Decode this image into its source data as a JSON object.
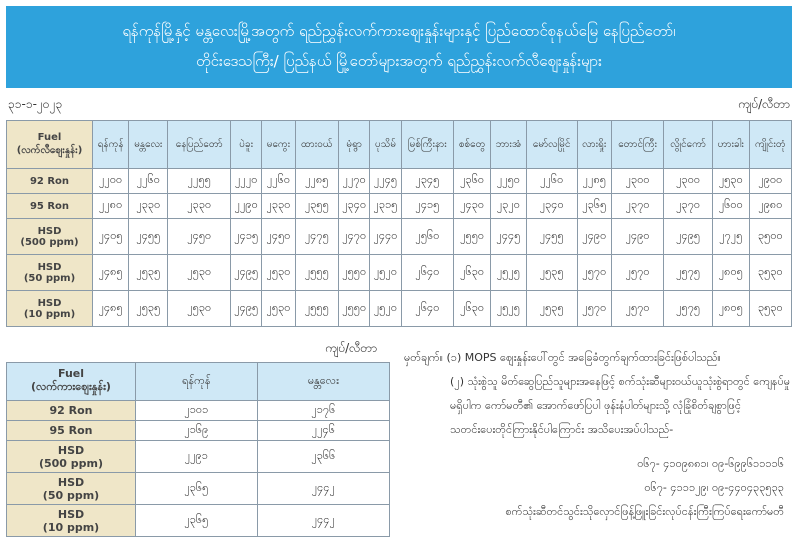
{
  "header": {
    "title_line1": "ရန်ကုန်မြို့နှင့် မန္တလေးမြို့အတွက် ရည်ညွှန်းလက်ကားဈေးနှုန်းများနှင့် ပြည်ထောင်စုနယ်မြေ နေပြည်တော်၊",
    "title_line2": "တိုင်းဒေသကြီး/ ပြည်နယ် မြို့တော်များအတွက် ရည်ညွှန်းလက်လီဈေးနှုန်းများ"
  },
  "date": "၃၁-၁-၂၀၂၃",
  "unit": "ကျပ်/လီတာ",
  "retail_table": {
    "fuel_header": "Fuel",
    "fuel_sub": "(လက်လီဈေးနှုန်း)",
    "cities": [
      "ရန်ကုန်",
      "မန္တလေး",
      "နေပြည်တော်",
      "ပဲခူး",
      "မကွေး",
      "ထားဝယ်",
      "မုံရွာ",
      "ပုသိမ်",
      "မြစ်ကြီးနား",
      "စစ်တွေ",
      "ဘားအံ",
      "မော်လမြိုင်",
      "လားရှိုး",
      "တောင်ကြီး",
      "လွိုင်ကော်",
      "ဟားခါး",
      "ကျိုင်းတုံ"
    ],
    "rows": [
      {
        "fuel": "92 Ron",
        "sub": "",
        "values": [
          "၂၂၀၀",
          "၂၂၆၀",
          "၂၂၅၅",
          "၂၂၂၀",
          "၂၂၆၀",
          "၂၂၈၅",
          "၂၂၇၀",
          "၂၂၄၅",
          "၂၃၄၅",
          "၂၃၆၀",
          "၂၂၅၀",
          "၂၂၆၀",
          "၂၂၈၅",
          "၂၃၀၀",
          "၂၃၀၀",
          "၂၅၃၀",
          "၂၉၀၀"
        ]
      },
      {
        "fuel": "95 Ron",
        "sub": "",
        "values": [
          "၂၂၈၀",
          "၂၃၃၀",
          "၂၃၃၀",
          "၂၂၉၀",
          "၂၃၃၀",
          "၂၃၅၅",
          "၂၃၄၀",
          "၂၃၁၅",
          "၂၄၁၅",
          "၂၄၃၀",
          "၂၃၂၀",
          "၂၃၄၀",
          "၂၃၆၅",
          "၂၃၇၀",
          "၂၃၇၀",
          "၂၆၀၀",
          "၂၉၈၀"
        ]
      },
      {
        "fuel": "HSD",
        "sub": "(500 ppm)",
        "values": [
          "၂၄၀၅",
          "၂၄၅၅",
          "၂၄၅၀",
          "၂၄၁၅",
          "၂၄၅၀",
          "၂၄၇၅",
          "၂၄၇၀",
          "၂၄၄၀",
          "၂၅၆၀",
          "၂၅၅၀",
          "၂၄၄၅",
          "၂၄၅၅",
          "၂၄၉၀",
          "၂၄၉၀",
          "၂၄၉၅",
          "၂၇၂၅",
          "၃၅၀၀"
        ]
      },
      {
        "fuel": "HSD",
        "sub": "(50 ppm)",
        "values": [
          "၂၄၈၅",
          "၂၅၃၅",
          "၂၅၃၀",
          "၂၄၉၅",
          "၂၅၃၀",
          "၂၅၅၅",
          "၂၅၅၀",
          "၂၅၂၀",
          "၂၆၄၀",
          "၂၆၃၀",
          "၂၅၂၅",
          "၂၅၃၅",
          "၂၅၇၀",
          "၂၅၇၀",
          "၂၅၇၅",
          "၂၈၀၅",
          "၃၅၃၀"
        ]
      },
      {
        "fuel": "HSD",
        "sub": "(10 ppm)",
        "values": [
          "၂၄၈၅",
          "၂၅၃၅",
          "၂၅၃၀",
          "၂၄၉၅",
          "၂၅၃၀",
          "၂၅၅၅",
          "၂၅၅၀",
          "၂၅၂၀",
          "၂၆၄၀",
          "၂၆၃၀",
          "၂၅၂၅",
          "၂၅၃၅",
          "၂၅၇၀",
          "၂၅၇၀",
          "၂၅၇၅",
          "၂၈၀၅",
          "၃၅၃၀"
        ]
      }
    ]
  },
  "wholesale_table": {
    "fuel_header": "Fuel",
    "fuel_sub": "(လက်ကားဈေးနှုန်း)",
    "cities": [
      "ရန်ကုန်",
      "မန္တလေး"
    ],
    "rows": [
      {
        "fuel": "92 Ron",
        "sub": "",
        "values": [
          "၂၁၀၁",
          "၂၁၇၆"
        ]
      },
      {
        "fuel": "95 Ron",
        "sub": "",
        "values": [
          "၂၁၆၉",
          "၂၂၄၆"
        ]
      },
      {
        "fuel": "HSD",
        "sub": "(500 ppm)",
        "values": [
          "၂၂၉၁",
          "၂၃၆၆"
        ]
      },
      {
        "fuel": "HSD",
        "sub": "(50 ppm)",
        "values": [
          "၂၃၆၅",
          "၂၄၄၂"
        ]
      },
      {
        "fuel": "HSD",
        "sub": "(10 ppm)",
        "values": [
          "၂၃၆၅",
          "၂၄၄၂"
        ]
      }
    ]
  },
  "notes": {
    "note1": "မှတ်ချက်။ (၁) MOPS ဈေးနှုန်းပေါ်တွင် အခြေခံတွက်ချက်ထားခြင်းဖြစ်ပါသည်။",
    "note2_l1": "(၂)  သုံးစွဲသူ မိတ်ဆွေပြည်သူများအနေဖြင့် စက်သုံးဆီများဝယ်ယူသုံးစွဲရာတွင် ကျေနပ်မှု",
    "note2_l2": "မရှိပါက  ကော်မတီ၏ အောက်ဖော်ပြပါ ဖုန်းနံပါတ်များသို့ လုံခြုံစိတ်ချစွာဖြင့်",
    "note2_l3": "သတင်းပေးတိုင်ကြားနိုင်ပါကြောင်း အသိပေးအပ်ပါသည်-",
    "phone1": "၀၆၇- ၄၁၀၉၈၈၁၊ ၀၉-၆၉၉၆၁၁၁၁၆",
    "phone2": "၀၆၇- ၄၁၁၁၂၉၊ ၀၉-၄၄၀၄၃၃၅၃၃",
    "committee": "စက်သုံးဆီတင်သွင်းသိုလှောင်ဖြန့်ဖြူးခြင်းလုပ်ငန်းကြီးကြပ်ရေးကော်မတီ"
  }
}
